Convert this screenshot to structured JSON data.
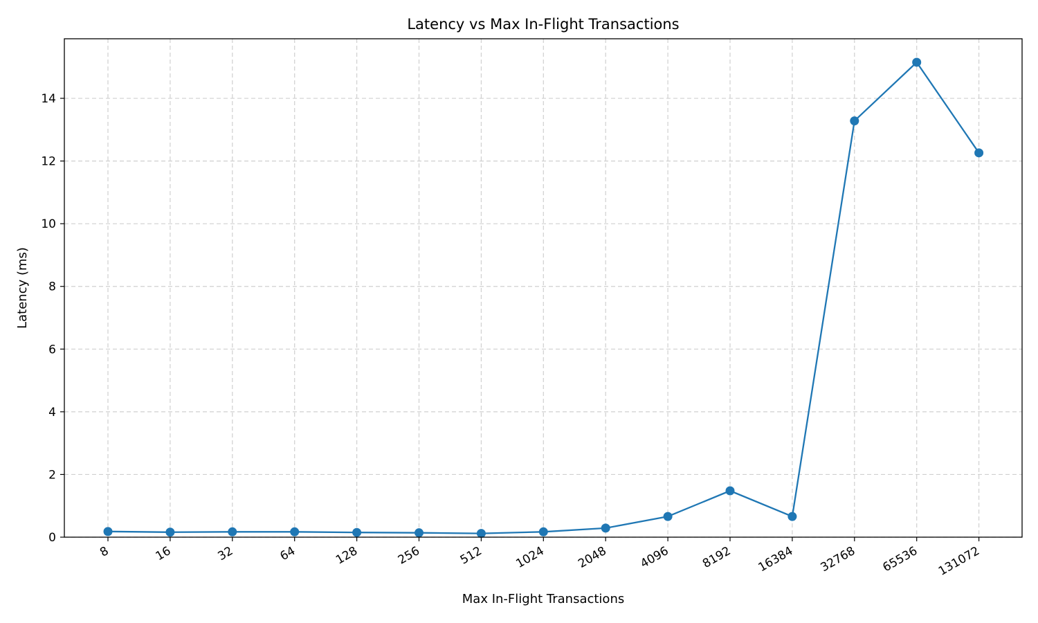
{
  "chart_data": {
    "type": "line",
    "title": "Latency vs Max In-Flight Transactions",
    "xlabel": "Max In-Flight Transactions",
    "ylabel": "Latency (ms)",
    "categories": [
      "8",
      "16",
      "32",
      "64",
      "128",
      "256",
      "512",
      "1024",
      "2048",
      "4096",
      "8192",
      "16384",
      "32768",
      "65536",
      "131072"
    ],
    "series": [
      {
        "values": [
          0.18,
          0.16,
          0.17,
          0.17,
          0.15,
          0.14,
          0.12,
          0.17,
          0.29,
          0.66,
          1.48,
          0.66,
          13.28,
          15.15,
          12.26
        ],
        "color": "#1f77b4",
        "marker": "circle"
      }
    ],
    "ylim": [
      0,
      15.9
    ],
    "yticks": [
      0,
      2,
      4,
      6,
      8,
      10,
      12,
      14
    ],
    "grid": true,
    "xtick_rotation": "30deg"
  }
}
